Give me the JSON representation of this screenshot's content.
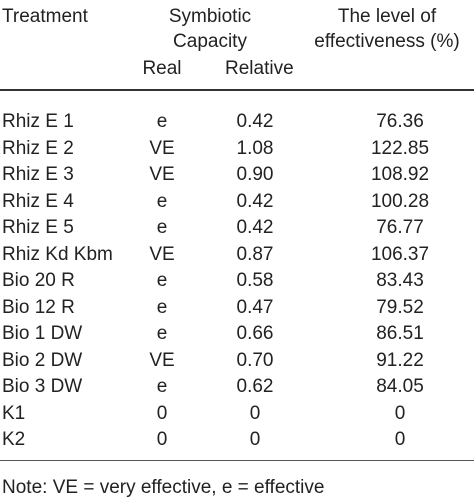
{
  "table": {
    "headers": {
      "treatment": "Treatment",
      "symbiotic_line1": "Symbiotic",
      "symbiotic_line2": "Capacity",
      "real": "Real",
      "relative": "Relative",
      "level_line1": "The level of",
      "level_line2": "effectiveness (%)"
    },
    "rows": [
      {
        "treatment": "Rhiz E 1",
        "real": "e",
        "relative": "0.42",
        "effectiveness": "76.36"
      },
      {
        "treatment": "Rhiz E 2",
        "real": "VE",
        "relative": "1.08",
        "effectiveness": "122.85"
      },
      {
        "treatment": "Rhiz E 3",
        "real": "VE",
        "relative": "0.90",
        "effectiveness": "108.92"
      },
      {
        "treatment": "Rhiz E 4",
        "real": "e",
        "relative": "0.42",
        "effectiveness": "100.28"
      },
      {
        "treatment": "Rhiz E 5",
        "real": "e",
        "relative": "0.42",
        "effectiveness": "76.77"
      },
      {
        "treatment": "Rhiz Kd Kbm",
        "real": "VE",
        "relative": "0.87",
        "effectiveness": "106.37"
      },
      {
        "treatment": "Bio 20 R",
        "real": "e",
        "relative": "0.58",
        "effectiveness": "83.43"
      },
      {
        "treatment": "Bio 12 R",
        "real": "e",
        "relative": "0.47",
        "effectiveness": "79.52"
      },
      {
        "treatment": "Bio 1 DW",
        "real": "e",
        "relative": "0.66",
        "effectiveness": "86.51"
      },
      {
        "treatment": "Bio 2 DW",
        "real": "VE",
        "relative": "0.70",
        "effectiveness": "91.22"
      },
      {
        "treatment": "Bio 3 DW",
        "real": "e",
        "relative": "0.62",
        "effectiveness": "84.05"
      },
      {
        "treatment": "K1",
        "real": "0",
        "relative": "0",
        "effectiveness": "0"
      },
      {
        "treatment": "K2",
        "real": "0",
        "relative": "0",
        "effectiveness": "0"
      }
    ],
    "note": "Note: VE = very effective, e = effective"
  }
}
